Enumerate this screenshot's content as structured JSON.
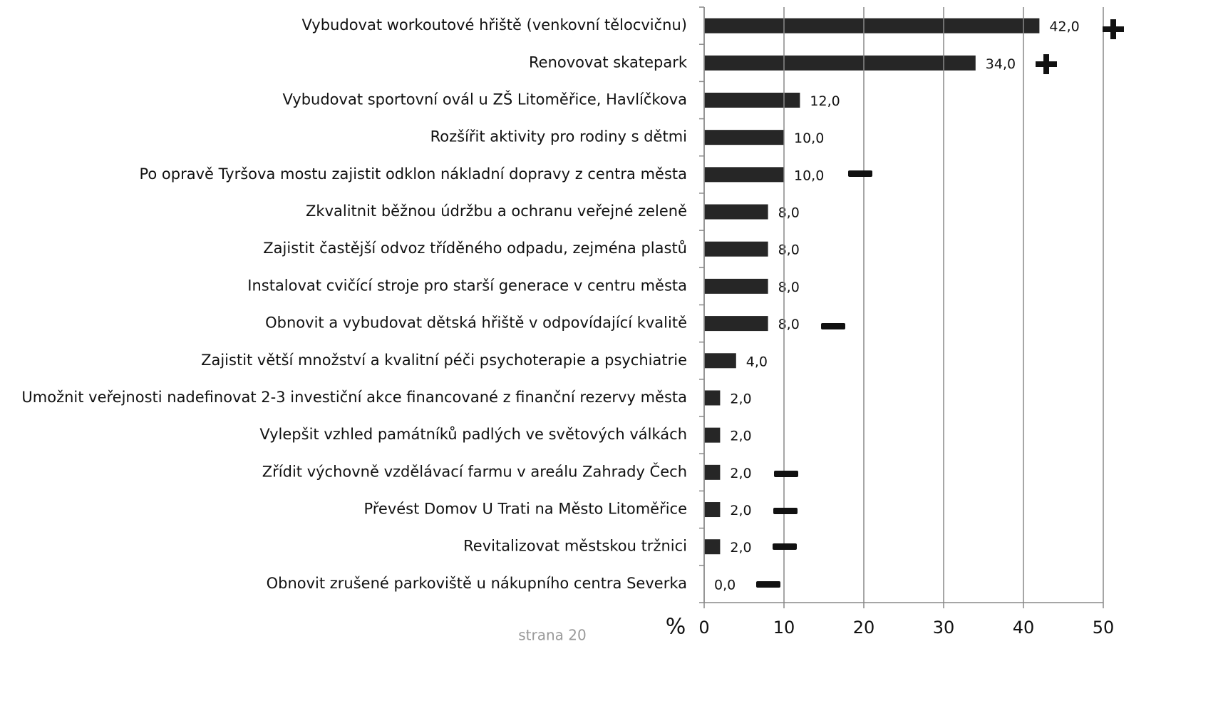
{
  "chart_data": {
    "type": "bar",
    "orientation": "horizontal",
    "categories": [
      "Vybudovat workoutové hřiště (venkovní tělocvičnu)",
      "Renovovat skatepark",
      "Vybudovat sportovní ovál u ZŠ Litoměřice, Havlíčkova",
      "Rozšířit aktivity pro rodiny s dětmi",
      "Po opravě Tyršova mostu zajistit odklon nákladní dopravy z centra města",
      "Zkvalitnit běžnou údržbu a ochranu veřejné zeleně",
      "Zajistit častější odvoz tříděného odpadu, zejména plastů",
      "Instalovat cvičící stroje pro starší generace v centru města",
      "Obnovit a vybudovat dětská hřiště v odpovídající kvalitě",
      "Zajistit větší množství a kvalitní péči psychoterapie a psychiatrie",
      "Umožnit veřejnosti nadefinovat 2-3 investiční akce financované z finanční rezervy města",
      "Vylepšit vzhled památníků padlých ve světových válkách",
      "Zřídit výchovně vzdělávací farmu v areálu Zahrady Čech",
      "Převést Domov U Trati na Město Litoměřice",
      "Revitalizovat městskou tržnici",
      "Obnovit zrušené parkoviště u nákupního centra Severka"
    ],
    "values": [
      42,
      34,
      12,
      10,
      10,
      8,
      8,
      8,
      8,
      4,
      2,
      2,
      2,
      2,
      2,
      0
    ],
    "value_labels": [
      "42,0",
      "34,0",
      "12,0",
      "10,0",
      "10,0",
      "8,0",
      "8,0",
      "8,0",
      "8,0",
      "4,0",
      "2,0",
      "2,0",
      "2,0",
      "2,0",
      "2,0",
      "0,0"
    ],
    "color": "#262626",
    "xlabel": "%",
    "xlim": [
      0,
      50
    ],
    "xticks": [
      0,
      10,
      20,
      30,
      40,
      50
    ],
    "grid": true,
    "footer": "strana 20"
  }
}
